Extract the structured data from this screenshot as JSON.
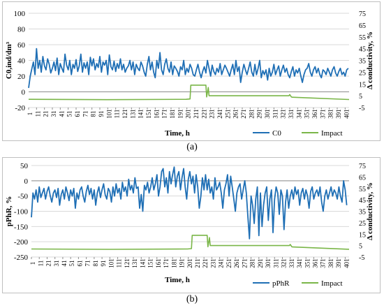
{
  "captions": {
    "a": "(a)",
    "b": "(b)"
  },
  "chart_data": [
    {
      "type": "line",
      "panel": "a",
      "ylabel": "C0,ind/dm³",
      "y2label": "Δ conductivity, %",
      "xlabel": "Time, h",
      "ylim": [
        -20,
        100
      ],
      "yticks": [
        -20,
        0,
        20,
        40,
        60,
        80,
        100
      ],
      "y2lim": [
        -5,
        75
      ],
      "y2ticks": [
        -5,
        5,
        15,
        25,
        35,
        45,
        55,
        65,
        75
      ],
      "xlim": [
        1,
        406
      ],
      "xticks": [
        1,
        11,
        21,
        31,
        41,
        51,
        61,
        71,
        81,
        91,
        101,
        111,
        121,
        131,
        141,
        151,
        161,
        171,
        181,
        191,
        201,
        211,
        221,
        231,
        241,
        251,
        261,
        271,
        281,
        291,
        301,
        311,
        321,
        331,
        341,
        351,
        361,
        371,
        381,
        391,
        401
      ],
      "grid": "horizontal",
      "legend": "bottom-right",
      "colors": {
        "primary": "#1f6fb5",
        "impact": "#7ab648",
        "grid": "#d9d9d9"
      },
      "series": [
        {
          "name": "C0",
          "axis": "left",
          "x_step": 2,
          "x_start": 1,
          "values": [
            5,
            20,
            29,
            38,
            22,
            55,
            30,
            40,
            25,
            45,
            33,
            28,
            42,
            35,
            24,
            30,
            38,
            27,
            43,
            22,
            36,
            30,
            25,
            48,
            34,
            28,
            40,
            22,
            35,
            30,
            41,
            26,
            33,
            48,
            25,
            37,
            30,
            38,
            22,
            44,
            33,
            42,
            28,
            36,
            31,
            45,
            25,
            38,
            34,
            40,
            22,
            47,
            32,
            28,
            39,
            26,
            36,
            30,
            42,
            28,
            35,
            25,
            30,
            33,
            40,
            28,
            38,
            22,
            35,
            30,
            27,
            38,
            33,
            25,
            20,
            35,
            45,
            28,
            38,
            25,
            18,
            40,
            30,
            50,
            28,
            22,
            35,
            42,
            30,
            25,
            38,
            22,
            33,
            30,
            26,
            20,
            32,
            28,
            40,
            22,
            30,
            25,
            35,
            30,
            22,
            20,
            28,
            35,
            25,
            18,
            26,
            32,
            24,
            40,
            30,
            20,
            34,
            26,
            22,
            30,
            25,
            36,
            22,
            28,
            34,
            30,
            25,
            20,
            28,
            35,
            22,
            40,
            26,
            32,
            12,
            25,
            35,
            28,
            22,
            30,
            38,
            25,
            20,
            35,
            22,
            30,
            40,
            18,
            27,
            22,
            28,
            15,
            30,
            20,
            25,
            35,
            22,
            28,
            33,
            20,
            28,
            34,
            25,
            30,
            22,
            18,
            26,
            32,
            20,
            28,
            24,
            30,
            20,
            12,
            22,
            28,
            30,
            36,
            25,
            20,
            28,
            32,
            24,
            30,
            22,
            18,
            28,
            26,
            22,
            30,
            25,
            20,
            28,
            32,
            24,
            20,
            26,
            30,
            22,
            25,
            20,
            28,
            30
          ]
        },
        {
          "name": "Impact",
          "axis": "right",
          "x": [
            1,
            100,
            200,
            205,
            206,
            225,
            226,
            228,
            229,
            330,
            331,
            333,
            334,
            406
          ],
          "values": [
            2,
            1.7,
            2,
            2.3,
            14,
            14,
            4,
            12,
            5,
            5,
            6,
            4,
            3.8,
            1.8
          ]
        }
      ]
    },
    {
      "type": "line",
      "panel": "b",
      "ylabel": "pPhR, %",
      "y2label": "Δ conductivity, %",
      "xlabel": "Time, h",
      "ylim": [
        -250,
        50
      ],
      "yticks": [
        -250,
        -200,
        -150,
        -100,
        -50,
        0,
        50
      ],
      "y2lim": [
        -5,
        75
      ],
      "y2ticks": [
        -5,
        5,
        15,
        25,
        35,
        45,
        55,
        65,
        75
      ],
      "xlim": [
        1,
        406
      ],
      "xticks": [
        1,
        11,
        21,
        31,
        41,
        51,
        61,
        71,
        81,
        91,
        101,
        111,
        121,
        131,
        141,
        151,
        161,
        171,
        181,
        191,
        201,
        211,
        221,
        231,
        241,
        251,
        261,
        271,
        281,
        291,
        301,
        311,
        321,
        331,
        341,
        351,
        361,
        371,
        381,
        391,
        401
      ],
      "grid": "horizontal",
      "legend": "bottom-right",
      "colors": {
        "primary": "#1f6fb5",
        "impact": "#7ab648",
        "grid": "#d9d9d9"
      },
      "series": [
        {
          "name": "pPhR",
          "axis": "left",
          "x_step": 2,
          "x_start": 1,
          "values": [
            -120,
            -40,
            -60,
            -30,
            -70,
            -20,
            -55,
            -40,
            -25,
            -60,
            -35,
            -20,
            -50,
            -70,
            -40,
            -30,
            -55,
            -25,
            -80,
            -45,
            -30,
            -60,
            -20,
            -40,
            -65,
            -30,
            -50,
            -25,
            -90,
            -40,
            -60,
            -30,
            -20,
            -50,
            -70,
            -35,
            -15,
            -45,
            -25,
            -60,
            -30,
            -80,
            -40,
            -20,
            -55,
            -30,
            -10,
            -45,
            -60,
            -25,
            -35,
            -70,
            -20,
            -50,
            -10,
            -40,
            -25,
            -60,
            -5,
            -35,
            -20,
            -50,
            5,
            -30,
            -15,
            -40,
            10,
            -25,
            -20,
            -90,
            -45,
            -100,
            -15,
            -30,
            -5,
            -40,
            -20,
            10,
            -30,
            -10,
            20,
            -50,
            -20,
            30,
            40,
            -20,
            10,
            -40,
            30,
            -10,
            20,
            45,
            -20,
            15,
            30,
            -30,
            10,
            40,
            -20,
            -60,
            5,
            30,
            -10,
            15,
            -40,
            20,
            -20,
            -90,
            -50,
            10,
            -30,
            20,
            -30,
            5,
            -40,
            -20,
            -60,
            10,
            -30,
            -20,
            -5,
            -40,
            -90,
            -30,
            -10,
            20,
            -50,
            15,
            -20,
            -60,
            -100,
            -40,
            -20,
            -10,
            -60,
            -30,
            0,
            -40,
            -120,
            -190,
            -50,
            -80,
            -140,
            -60,
            -20,
            -180,
            -40,
            -150,
            -80,
            -40,
            -20,
            -130,
            -60,
            -30,
            -170,
            -60,
            -20,
            -40,
            -110,
            -30,
            -50,
            -160,
            -70,
            -30,
            -90,
            -50,
            -30,
            -60,
            -20,
            -45,
            -30,
            -80,
            -40,
            -25,
            -60,
            -30,
            -50,
            -90,
            -35,
            -20,
            -60,
            -40,
            -30,
            -50,
            -20,
            -70,
            -100,
            -50,
            -30,
            -60,
            -40,
            -20,
            -50,
            -30,
            -40,
            -60,
            -20,
            -50,
            -70,
            0,
            -30,
            -80
          ]
        },
        {
          "name": "Impact",
          "axis": "right",
          "x": [
            1,
            100,
            200,
            205,
            206,
            225,
            226,
            228,
            229,
            330,
            331,
            333,
            334,
            406
          ],
          "values": [
            2,
            1.7,
            2,
            2.3,
            14,
            14,
            4,
            12,
            5,
            5,
            6,
            4,
            3.8,
            1.8
          ]
        }
      ]
    }
  ]
}
